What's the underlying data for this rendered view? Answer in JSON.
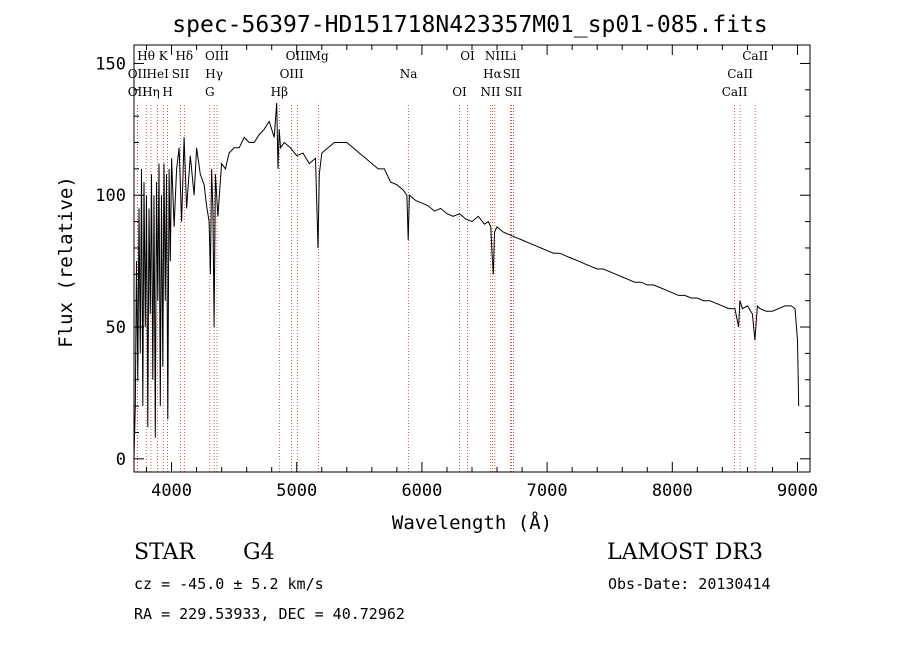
{
  "chart_data": {
    "type": "line",
    "title": "spec-56397-HD151718N423357M01_sp01-085.fits",
    "xlabel": "Wavelength (Å)",
    "ylabel": "Flux (relative)",
    "xlim": [
      3700,
      9100
    ],
    "ylim": [
      -5,
      157
    ],
    "xticks": [
      4000,
      5000,
      6000,
      7000,
      8000,
      9000
    ],
    "yticks": [
      0,
      50,
      100,
      150
    ],
    "grid": false,
    "series": [
      {
        "name": "flux",
        "x": [
          3700,
          3710,
          3720,
          3730,
          3740,
          3750,
          3760,
          3770,
          3780,
          3790,
          3800,
          3810,
          3820,
          3830,
          3840,
          3850,
          3860,
          3870,
          3880,
          3890,
          3900,
          3910,
          3920,
          3930,
          3940,
          3950,
          3960,
          3970,
          3980,
          3990,
          4000,
          4020,
          4040,
          4060,
          4080,
          4100,
          4120,
          4150,
          4180,
          4200,
          4230,
          4260,
          4280,
          4300,
          4310,
          4320,
          4330,
          4340,
          4350,
          4370,
          4400,
          4430,
          4460,
          4500,
          4540,
          4580,
          4620,
          4660,
          4700,
          4740,
          4780,
          4820,
          4840,
          4850,
          4860,
          4870,
          4900,
          4950,
          5000,
          5050,
          5100,
          5150,
          5170,
          5180,
          5200,
          5250,
          5300,
          5350,
          5400,
          5450,
          5500,
          5550,
          5600,
          5650,
          5700,
          5750,
          5800,
          5850,
          5880,
          5890,
          5900,
          5950,
          6000,
          6050,
          6100,
          6150,
          6200,
          6250,
          6300,
          6350,
          6400,
          6450,
          6500,
          6530,
          6550,
          6560,
          6570,
          6580,
          6600,
          6650,
          6700,
          6750,
          6800,
          6850,
          6900,
          6950,
          7000,
          7050,
          7100,
          7150,
          7200,
          7250,
          7300,
          7350,
          7400,
          7450,
          7500,
          7550,
          7600,
          7650,
          7700,
          7750,
          7800,
          7850,
          7900,
          7950,
          8000,
          8050,
          8100,
          8150,
          8200,
          8250,
          8300,
          8350,
          8400,
          8450,
          8500,
          8530,
          8540,
          8560,
          8600,
          8640,
          8660,
          8680,
          8700,
          8750,
          8800,
          8850,
          8900,
          8950,
          8980,
          9000,
          9010
        ],
        "y": [
          0,
          20,
          75,
          30,
          95,
          40,
          110,
          20,
          105,
          50,
          100,
          12,
          95,
          55,
          108,
          30,
          100,
          8,
          105,
          60,
          112,
          20,
          100,
          35,
          112,
          60,
          108,
          15,
          110,
          75,
          114,
          88,
          110,
          118,
          90,
          122,
          95,
          115,
          100,
          118,
          108,
          104,
          96,
          90,
          70,
          110,
          95,
          50,
          108,
          92,
          112,
          110,
          116,
          118,
          118,
          122,
          120,
          120,
          123,
          125,
          128,
          122,
          135,
          110,
          125,
          118,
          120,
          118,
          115,
          116,
          112,
          114,
          80,
          108,
          116,
          118,
          120,
          120,
          120,
          118,
          116,
          114,
          112,
          110,
          110,
          105,
          104,
          102,
          100,
          83,
          100,
          98,
          97,
          96,
          94,
          95,
          93,
          92,
          93,
          91,
          90,
          92,
          89,
          90,
          88,
          78,
          70,
          86,
          88,
          86,
          85,
          84,
          83,
          82,
          81,
          80,
          79,
          78,
          78,
          77,
          76,
          75,
          74,
          73,
          72,
          72,
          71,
          70,
          69,
          68,
          67,
          67,
          66,
          66,
          65,
          64,
          63,
          62,
          62,
          61,
          61,
          60,
          60,
          59,
          58,
          57,
          57,
          50,
          60,
          57,
          58,
          55,
          45,
          58,
          57,
          56,
          56,
          57,
          58,
          58,
          57,
          45,
          20
        ]
      }
    ],
    "spectral_lines": [
      {
        "label": "Hθ",
        "wavelength": 3797
      },
      {
        "label": "OII",
        "wavelength": 3727
      },
      {
        "label": "OII",
        "wavelength": 3727
      },
      {
        "label": "K",
        "wavelength": 3934
      },
      {
        "label": "HeI",
        "wavelength": 3889
      },
      {
        "label": "Hη",
        "wavelength": 3835
      },
      {
        "label": "Hδ",
        "wavelength": 4102
      },
      {
        "label": "SII",
        "wavelength": 4072
      },
      {
        "label": "H",
        "wavelength": 3968
      },
      {
        "label": "OIII",
        "wavelength": 4363
      },
      {
        "label": "Hγ",
        "wavelength": 4340
      },
      {
        "label": "G",
        "wavelength": 4305
      },
      {
        "label": "OIII",
        "wavelength": 5007
      },
      {
        "label": "OIII",
        "wavelength": 4959
      },
      {
        "label": "Hβ",
        "wavelength": 4861
      },
      {
        "label": "Mg",
        "wavelength": 5175
      },
      {
        "label": "Na",
        "wavelength": 5893
      },
      {
        "label": "OI",
        "wavelength": 6300
      },
      {
        "label": "OI",
        "wavelength": 6364
      },
      {
        "label": "Hα",
        "wavelength": 6563
      },
      {
        "label": "NII",
        "wavelength": 6548
      },
      {
        "label": "NII",
        "wavelength": 6583
      },
      {
        "label": "SII",
        "wavelength": 6716
      },
      {
        "label": "SII",
        "wavelength": 6731
      },
      {
        "label": "Li",
        "wavelength": 6708
      },
      {
        "label": "CaII",
        "wavelength": 8542
      },
      {
        "label": "CaII",
        "wavelength": 8498
      },
      {
        "label": "CaII",
        "wavelength": 8662
      }
    ]
  },
  "info": {
    "class_label": "STAR",
    "subclass": "G4",
    "survey": "LAMOST DR3",
    "cz": "cz = -45.0 ± 5.2 km/s",
    "obs_date": "Obs-Date: 20130414",
    "coords": "RA = 229.53933, DEC =  40.72962"
  },
  "colors": {
    "line_marker": "#c0392b",
    "spectrum": "#000000"
  }
}
